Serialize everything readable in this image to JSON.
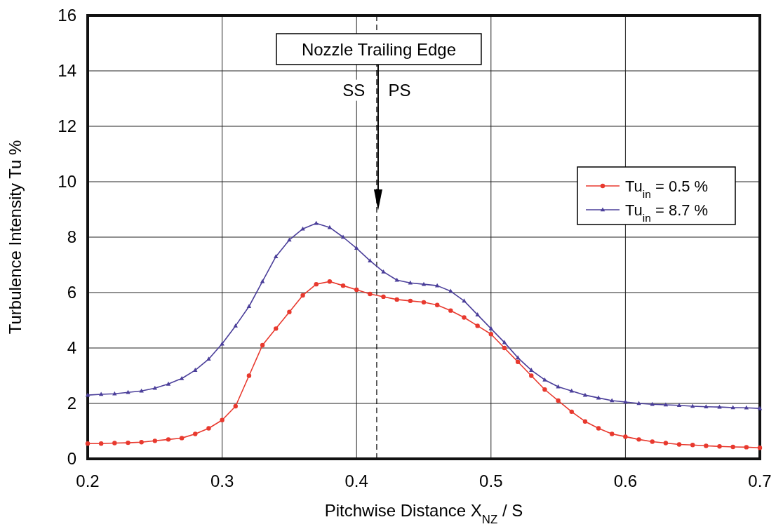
{
  "chart_data": {
    "type": "line",
    "xlabel": "Pitchwise Distance  X$_{NZ}$ / S",
    "ylabel": "Turbulence Intensity  Tu  %",
    "xlim": [
      0.2,
      0.7
    ],
    "xticks": [
      {
        "value": 0.2,
        "label": "0.2"
      },
      {
        "value": 0.3,
        "label": "0.3"
      },
      {
        "value": 0.4,
        "label": "0.4"
      },
      {
        "value": 0.5,
        "label": "0.5"
      },
      {
        "value": 0.6,
        "label": "0.6"
      },
      {
        "value": 0.7,
        "label": "0.7"
      }
    ],
    "ylim": [
      0,
      16
    ],
    "yticks": [
      0,
      2,
      4,
      6,
      8,
      10,
      12,
      14,
      16
    ],
    "grid": true,
    "legend": "right",
    "line_style": "solid",
    "x": [
      0.2,
      0.21,
      0.22,
      0.23,
      0.24,
      0.25,
      0.26,
      0.27,
      0.28,
      0.29,
      0.3,
      0.31,
      0.32,
      0.33,
      0.34,
      0.35,
      0.36,
      0.37,
      0.38,
      0.39,
      0.4,
      0.41,
      0.42,
      0.43,
      0.44,
      0.45,
      0.46,
      0.47,
      0.48,
      0.49,
      0.5,
      0.51,
      0.52,
      0.53,
      0.54,
      0.55,
      0.56,
      0.57,
      0.58,
      0.59,
      0.6,
      0.61,
      0.62,
      0.63,
      0.64,
      0.65,
      0.66,
      0.67,
      0.68,
      0.69,
      0.7
    ],
    "series": [
      {
        "name": "Tu$_{in}$ = 0.5 %",
        "color": "#e8392e",
        "marker": "circle",
        "values": [
          0.55,
          0.55,
          0.57,
          0.58,
          0.6,
          0.65,
          0.7,
          0.75,
          0.9,
          1.1,
          1.4,
          1.9,
          3.0,
          4.1,
          4.7,
          5.3,
          5.9,
          6.3,
          6.4,
          6.25,
          6.1,
          5.95,
          5.85,
          5.75,
          5.7,
          5.65,
          5.55,
          5.35,
          5.1,
          4.8,
          4.5,
          4.0,
          3.5,
          3.0,
          2.5,
          2.1,
          1.7,
          1.35,
          1.1,
          0.9,
          0.8,
          0.7,
          0.62,
          0.57,
          0.52,
          0.5,
          0.47,
          0.45,
          0.43,
          0.42,
          0.4
        ]
      },
      {
        "name": "Tu$_{in}$ = 8.7 %",
        "color": "#4b3f9a",
        "marker": "triangle",
        "values": [
          2.3,
          2.33,
          2.35,
          2.4,
          2.45,
          2.55,
          2.7,
          2.9,
          3.2,
          3.6,
          4.15,
          4.8,
          5.5,
          6.4,
          7.3,
          7.9,
          8.3,
          8.5,
          8.35,
          8.0,
          7.6,
          7.15,
          6.75,
          6.45,
          6.35,
          6.3,
          6.25,
          6.05,
          5.7,
          5.2,
          4.7,
          4.2,
          3.65,
          3.2,
          2.85,
          2.6,
          2.45,
          2.3,
          2.2,
          2.1,
          2.05,
          2.0,
          1.97,
          1.95,
          1.93,
          1.9,
          1.88,
          1.87,
          1.85,
          1.84,
          1.82
        ]
      }
    ],
    "ref_lines": [
      {
        "axis": "x",
        "value": 0.415,
        "label": "Nozzle Trailing Edge",
        "line_style": "dashed",
        "color": "#000000"
      }
    ],
    "annotations": [
      {
        "text": "SS",
        "x": 0.398,
        "y": 13.3
      },
      {
        "text": "PS",
        "x": 0.432,
        "y": 13.3
      }
    ]
  }
}
